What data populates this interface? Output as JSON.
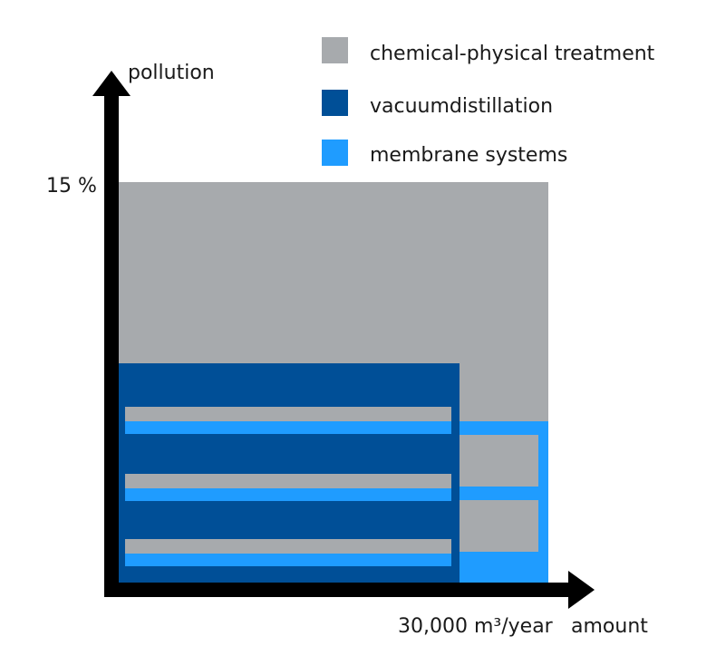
{
  "colors": {
    "chemical": "#a7aaad",
    "vacuum": "#004f97",
    "membrane": "#1f9cff",
    "axis": "#000000",
    "text": "#1a1a1a"
  },
  "legend": [
    {
      "key": "chemical",
      "label": "chemical-physical treatment"
    },
    {
      "key": "vacuum",
      "label": "vacuumdistillation"
    },
    {
      "key": "membrane",
      "label": "membrane systems"
    }
  ],
  "axes": {
    "y_label": "pollution",
    "y_tick": "15 %",
    "x_tick": "30,000 m³/year",
    "x_label": "amount"
  }
}
